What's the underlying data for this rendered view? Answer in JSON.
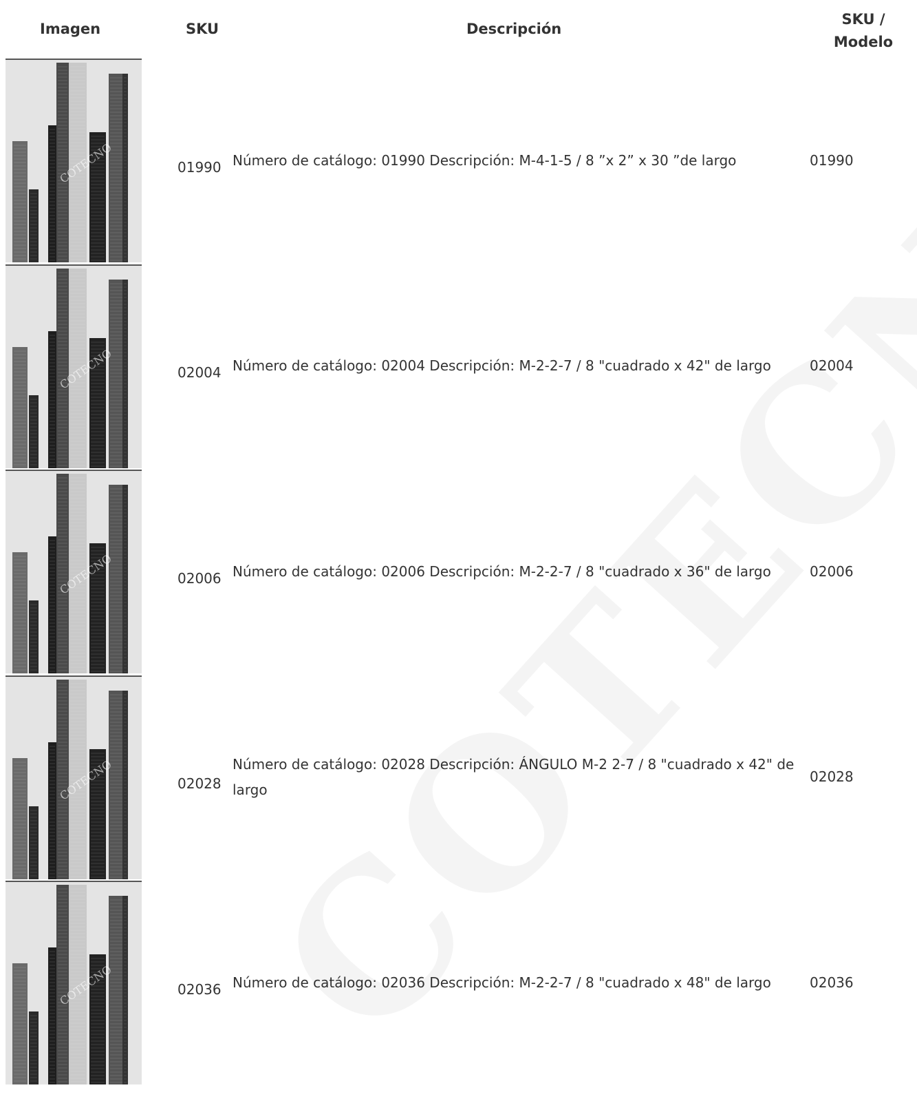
{
  "watermark": "COTECNO",
  "image_watermark": "COTECNO",
  "table": {
    "header": [
      "Imagen",
      "SKU",
      "Descripción",
      "SKU / Modelo"
    ],
    "rows": [
      {
        "sku": "01990",
        "description": "Número de catálogo: 01990 Descripción: M-4-1-5 / 8 ”x 2” x 30 ”de largo",
        "model": "01990"
      },
      {
        "sku": "02004",
        "description": "Número de catálogo: 02004 Descripción: M-2-2-7 / 8 \"cuadrado x 42\" de largo",
        "model": "02004"
      },
      {
        "sku": "02006",
        "description": "Número de catálogo: 02006 Descripción: M-2-2-7 / 8 \"cuadrado x 36\" de largo",
        "model": "02006"
      },
      {
        "sku": "02028",
        "description": "Número de catálogo: 02028 Descripción: ÁNGULO M-2 2-7 / 8 \"cuadrado x 42\" de largo",
        "model": "02028"
      },
      {
        "sku": "02036",
        "description": "Número de catálogo: 02036 Descripción: M-2-2-7 / 8 \"cuadrado x 48\" de largo",
        "model": "02036"
      }
    ]
  }
}
